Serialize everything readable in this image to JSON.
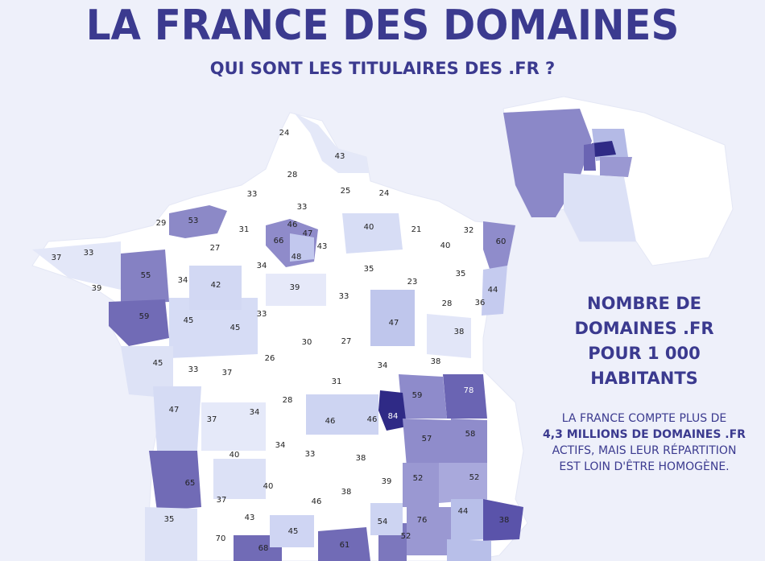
{
  "header": {
    "title": "LA FRANCE DES DOMAINES",
    "subtitle": "QUI SONT LES TITULAIRES DES .FR ?"
  },
  "legend": {
    "title_lines": [
      "NOMBRE DE",
      "DOMAINES .FR",
      "POUR 1 000",
      "HABITANTS"
    ],
    "body_line1": "LA FRANCE COMPTE PLUS DE",
    "body_highlight": "4,3 MILLIONS DE DOMAINES .FR",
    "body_line3": "ACTIFS, MAIS LEUR RÉPARTITION",
    "body_line4": "EST LOIN D'ÊTRE HOMOGÈNE."
  },
  "colors": {
    "background": "#eef0fa",
    "accent": "#3b3a8f",
    "scale": [
      "#ffffff",
      "#dfe4f7",
      "#bcc3ec",
      "#9293d2",
      "#6a63b3",
      "#2f2a86"
    ]
  },
  "departments": [
    {
      "value": "24"
    },
    {
      "value": "43"
    },
    {
      "value": "28"
    },
    {
      "value": "33"
    },
    {
      "value": "33"
    },
    {
      "value": "25"
    },
    {
      "value": "24"
    },
    {
      "value": "29"
    },
    {
      "value": "53"
    },
    {
      "value": "31"
    },
    {
      "value": "46"
    },
    {
      "value": "47"
    },
    {
      "value": "66"
    },
    {
      "value": "43"
    },
    {
      "value": "48"
    },
    {
      "value": "40"
    },
    {
      "value": "21"
    },
    {
      "value": "32"
    },
    {
      "value": "60"
    },
    {
      "value": "37"
    },
    {
      "value": "33"
    },
    {
      "value": "27"
    },
    {
      "value": "34"
    },
    {
      "value": "35"
    },
    {
      "value": "40"
    },
    {
      "value": "55"
    },
    {
      "value": "34"
    },
    {
      "value": "42"
    },
    {
      "value": "39"
    },
    {
      "value": "23"
    },
    {
      "value": "35"
    },
    {
      "value": "44"
    },
    {
      "value": "39"
    },
    {
      "value": "33"
    },
    {
      "value": "28"
    },
    {
      "value": "36"
    },
    {
      "value": "59"
    },
    {
      "value": "45"
    },
    {
      "value": "45"
    },
    {
      "value": "33"
    },
    {
      "value": "47"
    },
    {
      "value": "38"
    },
    {
      "value": "30"
    },
    {
      "value": "27"
    },
    {
      "value": "26"
    },
    {
      "value": "45"
    },
    {
      "value": "33"
    },
    {
      "value": "37"
    },
    {
      "value": "34"
    },
    {
      "value": "38"
    },
    {
      "value": "31"
    },
    {
      "value": "28"
    },
    {
      "value": "59"
    },
    {
      "value": "78"
    },
    {
      "value": "47"
    },
    {
      "value": "37"
    },
    {
      "value": "34"
    },
    {
      "value": "46"
    },
    {
      "value": "46"
    },
    {
      "value": "84"
    },
    {
      "value": "57"
    },
    {
      "value": "58"
    },
    {
      "value": "34"
    },
    {
      "value": "40"
    },
    {
      "value": "33"
    },
    {
      "value": "38"
    },
    {
      "value": "52"
    },
    {
      "value": "52"
    },
    {
      "value": "65"
    },
    {
      "value": "40"
    },
    {
      "value": "39"
    },
    {
      "value": "38"
    },
    {
      "value": "37"
    },
    {
      "value": "46"
    },
    {
      "value": "44"
    },
    {
      "value": "35"
    },
    {
      "value": "43"
    },
    {
      "value": "45"
    },
    {
      "value": "54"
    },
    {
      "value": "76"
    },
    {
      "value": "38"
    },
    {
      "value": "70"
    },
    {
      "value": "68"
    },
    {
      "value": "61"
    },
    {
      "value": "52"
    }
  ]
}
